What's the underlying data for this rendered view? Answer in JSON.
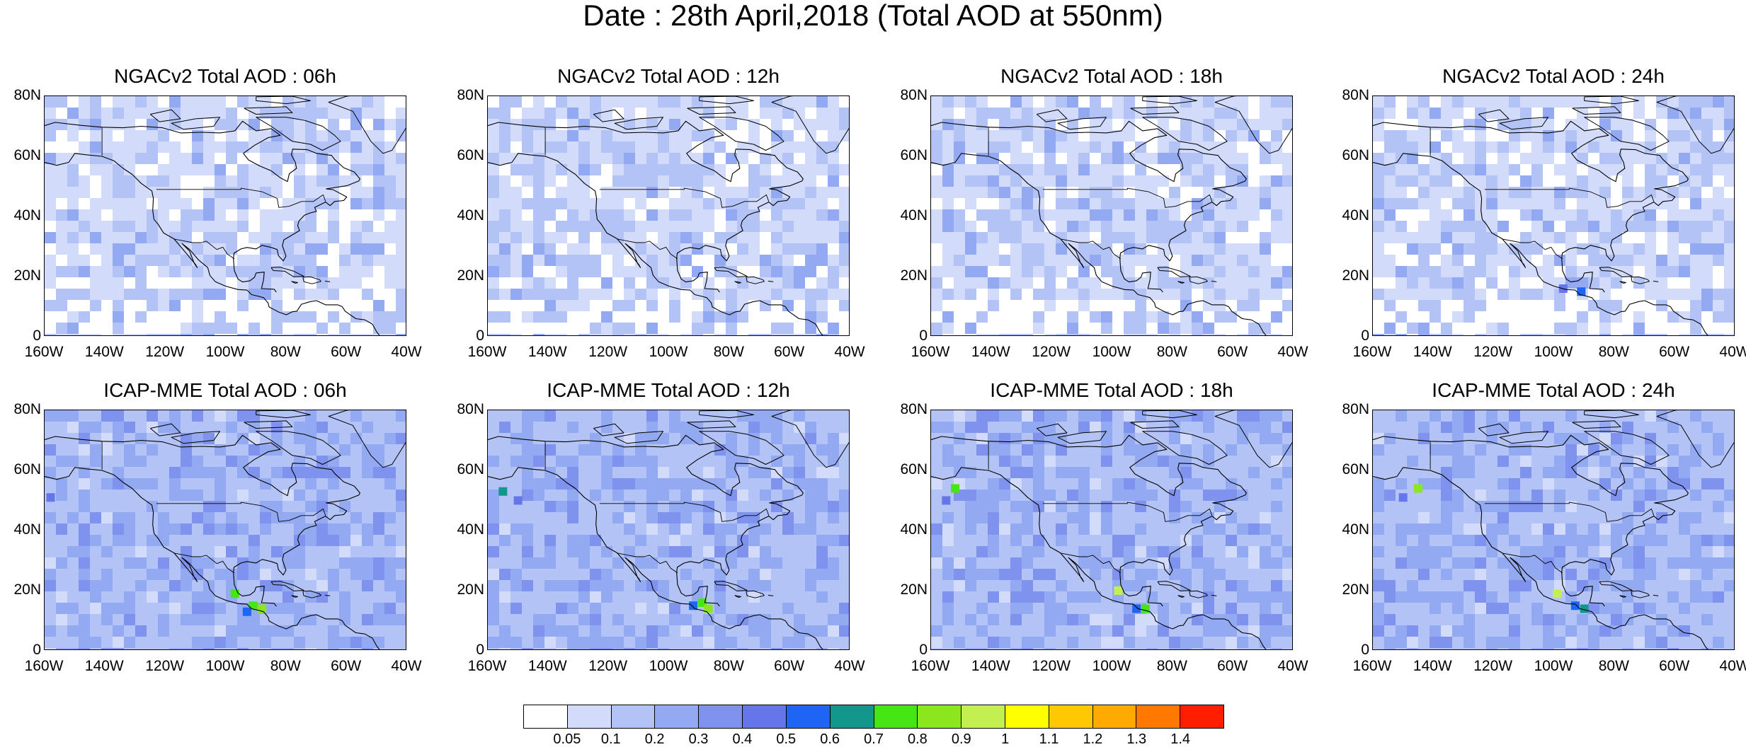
{
  "figure_title": "Date : 28th April,2018 (Total AOD at 550nm)",
  "panels": [
    {
      "title": "NGACv2 Total AOD : 06h"
    },
    {
      "title": "NGACv2 Total AOD : 12h"
    },
    {
      "title": "NGACv2 Total AOD : 18h"
    },
    {
      "title": "NGACv2 Total AOD : 24h"
    },
    {
      "title": "ICAP-MME Total AOD : 06h"
    },
    {
      "title": "ICAP-MME Total AOD : 12h"
    },
    {
      "title": "ICAP-MME Total AOD : 18h"
    },
    {
      "title": "ICAP-MME Total AOD : 24h"
    }
  ],
  "lat_ticks": [
    "80N",
    "60N",
    "40N",
    "20N",
    "0"
  ],
  "lon_ticks": [
    "160W",
    "140W",
    "120W",
    "100W",
    "80W",
    "60W",
    "40W"
  ],
  "map_extent": {
    "lon_min": -160,
    "lon_max": -40,
    "lat_min": 0,
    "lat_max": 80
  },
  "colorbar": {
    "labels": [
      "0.05",
      "0.1",
      "0.2",
      "0.3",
      "0.4",
      "0.5",
      "0.6",
      "0.7",
      "0.8",
      "0.9",
      "1",
      "1.1",
      "1.2",
      "1.3",
      "1.4"
    ],
    "colors": [
      "#ffffff",
      "#d2dcfa",
      "#b3c3f5",
      "#93a9f2",
      "#7f93ee",
      "#6575ea",
      "#1e64f5",
      "#13968c",
      "#46e614",
      "#8ce61e",
      "#c3f050",
      "#ffff00",
      "#ffc800",
      "#ffaa00",
      "#ff7800",
      "#ff1e00"
    ]
  }
}
